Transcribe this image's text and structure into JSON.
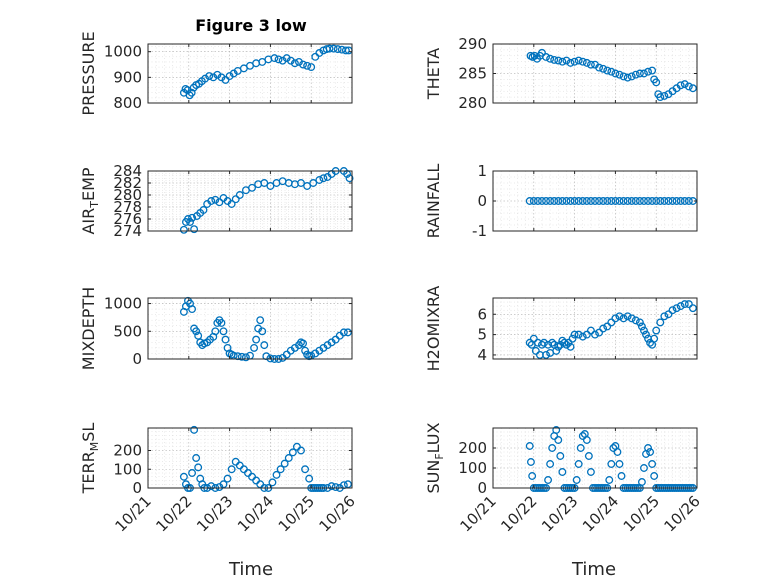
{
  "figure": {
    "title": "Figure 3 low"
  },
  "chart_data": [
    {
      "type": "scatter",
      "ylabel": "PRESSURE",
      "ylim": [
        800,
        1030
      ],
      "yticks": [
        800,
        900,
        1000
      ],
      "xlim": [
        0,
        5
      ],
      "show_xticks": false,
      "grid": true,
      "color": "#0072bd",
      "x": [
        0.88,
        0.92,
        0.97,
        1.02,
        1.07,
        1.12,
        1.18,
        1.25,
        1.32,
        1.4,
        1.5,
        1.6,
        1.7,
        1.8,
        1.9,
        2.0,
        2.1,
        2.2,
        2.35,
        2.5,
        2.65,
        2.8,
        2.95,
        3.1,
        3.2,
        3.3,
        3.4,
        3.5,
        3.6,
        3.7,
        3.8,
        3.9,
        4.0,
        4.1,
        4.2,
        4.3,
        4.38,
        4.45,
        4.55,
        4.65,
        4.75,
        4.85,
        4.92
      ],
      "y": [
        840,
        855,
        850,
        830,
        840,
        860,
        870,
        875,
        885,
        895,
        905,
        900,
        910,
        900,
        890,
        905,
        915,
        925,
        935,
        945,
        955,
        960,
        970,
        975,
        970,
        965,
        975,
        965,
        955,
        960,
        950,
        945,
        940,
        980,
        995,
        1005,
        1010,
        1012,
        1012,
        1010,
        1008,
        1005,
        1005
      ]
    },
    {
      "type": "scatter",
      "ylabel": "THETA",
      "ylim": [
        280,
        290
      ],
      "yticks": [
        280,
        285,
        290
      ],
      "xlim": [
        0,
        5
      ],
      "show_xticks": false,
      "grid": true,
      "color": "#0072bd",
      "x": [
        0.92,
        0.97,
        1.02,
        1.08,
        1.15,
        1.2,
        1.3,
        1.4,
        1.5,
        1.6,
        1.7,
        1.8,
        1.9,
        2.0,
        2.1,
        2.2,
        2.3,
        2.4,
        2.5,
        2.6,
        2.7,
        2.8,
        2.9,
        3.0,
        3.1,
        3.2,
        3.3,
        3.4,
        3.5,
        3.6,
        3.7,
        3.8,
        3.9,
        3.95,
        4.0,
        4.05,
        4.1,
        4.2,
        4.3,
        4.4,
        4.5,
        4.6,
        4.7,
        4.8,
        4.9
      ],
      "y": [
        288,
        287.8,
        288,
        287.5,
        288,
        288.5,
        287.8,
        287.5,
        287.3,
        287.2,
        287.0,
        287.2,
        286.8,
        287.0,
        287.2,
        287.0,
        286.8,
        286.5,
        286.5,
        286.0,
        285.8,
        285.5,
        285.3,
        285.0,
        284.8,
        284.5,
        284.3,
        284.5,
        284.8,
        285.0,
        285.0,
        285.3,
        285.5,
        284.0,
        283.5,
        281.5,
        281.0,
        281.2,
        281.5,
        282.0,
        282.5,
        283.0,
        283.2,
        282.8,
        282.5
      ]
    },
    {
      "type": "scatter",
      "ylabel": "AIR_TEMP",
      "ylim": [
        274,
        284
      ],
      "yticks": [
        274,
        276,
        278,
        280,
        282,
        284
      ],
      "xlim": [
        0,
        5
      ],
      "show_xticks": false,
      "grid": true,
      "color": "#0072bd",
      "x": [
        0.88,
        0.93,
        0.98,
        1.03,
        1.08,
        1.13,
        1.2,
        1.28,
        1.36,
        1.45,
        1.55,
        1.65,
        1.75,
        1.85,
        1.95,
        2.05,
        2.15,
        2.25,
        2.4,
        2.55,
        2.7,
        2.85,
        3.0,
        3.15,
        3.3,
        3.45,
        3.6,
        3.75,
        3.9,
        4.05,
        4.2,
        4.3,
        4.4,
        4.5,
        4.6,
        4.7,
        4.8,
        4.88,
        4.94
      ],
      "y": [
        274.2,
        275.5,
        276.0,
        275.5,
        276.2,
        274.3,
        276.5,
        277.0,
        277.5,
        278.5,
        279.0,
        279.2,
        278.8,
        279.5,
        279.0,
        278.5,
        279.3,
        280.0,
        280.8,
        281.2,
        281.8,
        282.0,
        281.5,
        282.0,
        282.3,
        282.0,
        281.8,
        282.0,
        281.5,
        282.0,
        282.5,
        282.8,
        283.0,
        283.5,
        284.0,
        284.2,
        284.0,
        283.5,
        282.8
      ]
    },
    {
      "type": "scatter",
      "ylabel": "RAINFALL",
      "ylim": [
        -1,
        1
      ],
      "yticks": [
        -1,
        0,
        1
      ],
      "xlim": [
        0,
        5
      ],
      "show_xticks": false,
      "grid": true,
      "color": "#0072bd",
      "x": [
        0.9,
        1.0,
        1.1,
        1.2,
        1.3,
        1.4,
        1.5,
        1.6,
        1.7,
        1.8,
        1.9,
        2.0,
        2.1,
        2.2,
        2.3,
        2.4,
        2.5,
        2.6,
        2.7,
        2.8,
        2.9,
        3.0,
        3.1,
        3.2,
        3.3,
        3.4,
        3.5,
        3.6,
        3.7,
        3.8,
        3.9,
        4.0,
        4.1,
        4.2,
        4.3,
        4.4,
        4.5,
        4.6,
        4.7,
        4.8,
        4.9
      ],
      "y": [
        0,
        0,
        0,
        0,
        0,
        0,
        0,
        0,
        0,
        0,
        0,
        0,
        0,
        0,
        0,
        0,
        0,
        0,
        0,
        0,
        0,
        0,
        0,
        0,
        0,
        0,
        0,
        0,
        0,
        0,
        0,
        0,
        0,
        0,
        0,
        0,
        0,
        0,
        0,
        0,
        0
      ]
    },
    {
      "type": "scatter",
      "ylabel": "MIXDEPTH",
      "ylim": [
        0,
        1100
      ],
      "yticks": [
        0,
        500,
        1000
      ],
      "xlim": [
        0,
        5
      ],
      "show_xticks": false,
      "grid": true,
      "color": "#0072bd",
      "x": [
        0.88,
        0.93,
        0.98,
        1.03,
        1.08,
        1.13,
        1.18,
        1.23,
        1.28,
        1.33,
        1.38,
        1.45,
        1.52,
        1.6,
        1.65,
        1.7,
        1.75,
        1.8,
        1.85,
        1.9,
        1.95,
        2.0,
        2.05,
        2.1,
        2.2,
        2.3,
        2.4,
        2.5,
        2.6,
        2.65,
        2.7,
        2.75,
        2.8,
        2.85,
        2.9,
        3.0,
        3.1,
        3.2,
        3.3,
        3.4,
        3.5,
        3.6,
        3.7,
        3.75,
        3.8,
        3.85,
        3.9,
        3.95,
        4.0,
        4.1,
        4.2,
        4.3,
        4.4,
        4.5,
        4.6,
        4.7,
        4.8,
        4.9
      ],
      "y": [
        850,
        950,
        1050,
        1000,
        900,
        550,
        500,
        420,
        300,
        250,
        280,
        300,
        350,
        400,
        500,
        650,
        700,
        650,
        500,
        350,
        200,
        100,
        80,
        60,
        50,
        40,
        30,
        60,
        200,
        350,
        550,
        700,
        500,
        250,
        50,
        10,
        0,
        0,
        20,
        80,
        150,
        200,
        250,
        300,
        280,
        150,
        80,
        50,
        60,
        100,
        150,
        200,
        250,
        300,
        350,
        420,
        480,
        480
      ]
    },
    {
      "type": "scatter",
      "ylabel": "H2OMIXRA",
      "ylim": [
        3.8,
        6.8
      ],
      "yticks": [
        4,
        5,
        6
      ],
      "xlim": [
        0,
        5
      ],
      "show_xticks": false,
      "grid": true,
      "color": "#0072bd",
      "x": [
        0.9,
        0.95,
        1.0,
        1.05,
        1.1,
        1.15,
        1.2,
        1.25,
        1.3,
        1.35,
        1.4,
        1.45,
        1.5,
        1.55,
        1.6,
        1.65,
        1.7,
        1.75,
        1.8,
        1.85,
        1.9,
        1.95,
        2.0,
        2.1,
        2.2,
        2.3,
        2.4,
        2.5,
        2.6,
        2.7,
        2.8,
        2.9,
        3.0,
        3.1,
        3.2,
        3.3,
        3.4,
        3.5,
        3.6,
        3.65,
        3.7,
        3.75,
        3.8,
        3.85,
        3.9,
        3.95,
        4.0,
        4.1,
        4.2,
        4.3,
        4.4,
        4.5,
        4.6,
        4.7,
        4.8,
        4.9
      ],
      "y": [
        4.6,
        4.5,
        4.8,
        4.2,
        4.6,
        4.0,
        4.5,
        4.6,
        4.0,
        4.5,
        4.1,
        4.6,
        4.5,
        4.2,
        4.4,
        4.5,
        4.7,
        4.6,
        4.5,
        4.6,
        4.4,
        4.8,
        5.0,
        5.0,
        4.9,
        5.0,
        5.2,
        5.0,
        5.1,
        5.3,
        5.4,
        5.6,
        5.8,
        5.9,
        5.8,
        5.9,
        5.8,
        5.7,
        5.6,
        5.4,
        5.2,
        5.0,
        4.8,
        4.6,
        4.5,
        4.8,
        5.2,
        5.6,
        5.9,
        6.0,
        6.2,
        6.3,
        6.4,
        6.5,
        6.5,
        6.3
      ]
    },
    {
      "type": "scatter",
      "ylabel": "TERR_MSL",
      "ylim": [
        0,
        320
      ],
      "yticks": [
        0,
        100,
        200
      ],
      "xlim": [
        0,
        5
      ],
      "show_xticks": true,
      "grid": true,
      "color": "#0072bd",
      "x": [
        0.88,
        0.93,
        0.98,
        1.03,
        1.08,
        1.13,
        1.18,
        1.23,
        1.28,
        1.33,
        1.38,
        1.45,
        1.55,
        1.65,
        1.75,
        1.85,
        1.95,
        2.05,
        2.15,
        2.25,
        2.35,
        2.45,
        2.55,
        2.65,
        2.75,
        2.85,
        2.95,
        3.05,
        3.15,
        3.25,
        3.35,
        3.45,
        3.55,
        3.65,
        3.75,
        3.85,
        3.95,
        4.0,
        4.05,
        4.1,
        4.15,
        4.2,
        4.25,
        4.3,
        4.4,
        4.5,
        4.6,
        4.7,
        4.8,
        4.9
      ],
      "y": [
        60,
        20,
        0,
        0,
        80,
        310,
        160,
        110,
        50,
        20,
        0,
        0,
        10,
        0,
        5,
        20,
        50,
        100,
        140,
        120,
        100,
        80,
        60,
        40,
        20,
        0,
        0,
        30,
        70,
        100,
        130,
        160,
        190,
        220,
        200,
        100,
        50,
        0,
        0,
        0,
        0,
        0,
        0,
        0,
        0,
        10,
        5,
        0,
        15,
        20
      ]
    },
    {
      "type": "scatter",
      "ylabel": "SUN_FLUX",
      "ylim": [
        0,
        300
      ],
      "yticks": [
        0,
        100,
        200
      ],
      "xlim": [
        0,
        5
      ],
      "show_xticks": true,
      "grid": true,
      "color": "#0072bd",
      "x": [
        0.9,
        0.93,
        0.96,
        1.0,
        1.05,
        1.1,
        1.15,
        1.2,
        1.25,
        1.3,
        1.35,
        1.4,
        1.45,
        1.5,
        1.55,
        1.6,
        1.65,
        1.7,
        1.75,
        1.8,
        1.85,
        1.9,
        1.95,
        2.0,
        2.05,
        2.1,
        2.15,
        2.2,
        2.25,
        2.3,
        2.35,
        2.4,
        2.45,
        2.5,
        2.55,
        2.6,
        2.65,
        2.7,
        2.75,
        2.8,
        2.85,
        2.9,
        2.95,
        3.0,
        3.05,
        3.1,
        3.15,
        3.2,
        3.25,
        3.3,
        3.35,
        3.4,
        3.45,
        3.5,
        3.55,
        3.6,
        3.65,
        3.7,
        3.75,
        3.8,
        3.85,
        3.9,
        3.95,
        4.0,
        4.05,
        4.1,
        4.15,
        4.2,
        4.25,
        4.3,
        4.35,
        4.4,
        4.45,
        4.5,
        4.55,
        4.6,
        4.65,
        4.7,
        4.75,
        4.8,
        4.85,
        4.9
      ],
      "y": [
        210,
        130,
        60,
        0,
        0,
        0,
        0,
        0,
        0,
        0,
        40,
        120,
        200,
        260,
        290,
        240,
        160,
        80,
        0,
        0,
        0,
        0,
        0,
        0,
        40,
        120,
        200,
        260,
        270,
        240,
        160,
        80,
        0,
        0,
        0,
        0,
        0,
        0,
        0,
        0,
        40,
        120,
        200,
        210,
        180,
        120,
        60,
        0,
        0,
        0,
        0,
        0,
        0,
        0,
        0,
        0,
        30,
        100,
        170,
        200,
        180,
        120,
        60,
        0,
        0,
        0,
        0,
        0,
        0,
        0,
        0,
        0,
        0,
        0,
        0,
        0,
        0,
        0,
        0,
        0,
        0,
        0
      ],
      "xticklabels": [
        "10/21",
        "10/22",
        "10/23",
        "10/24",
        "10/25",
        "10/26"
      ]
    }
  ],
  "axes_text": {
    "xlabel_left": "Time",
    "xlabel_right": "Time",
    "xticklabels": [
      "10/21",
      "10/22",
      "10/23",
      "10/24",
      "10/25",
      "10/26"
    ]
  }
}
